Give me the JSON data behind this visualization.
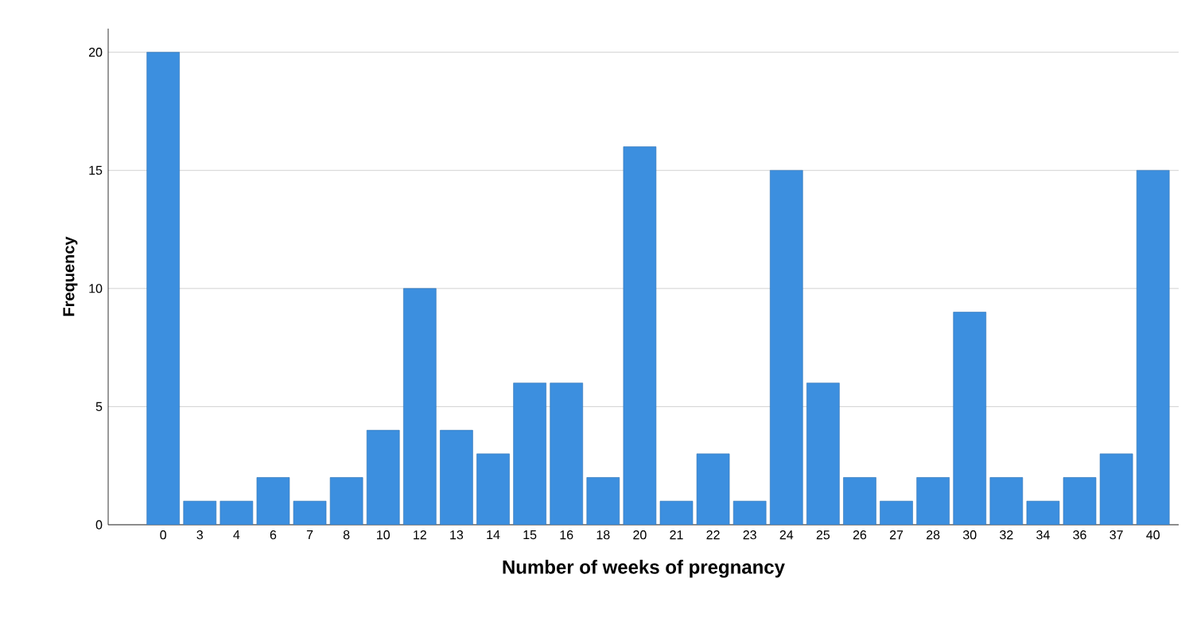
{
  "chart_data": {
    "type": "bar",
    "xlabel": "Number of weeks of pregnancy",
    "ylabel": "Frequency",
    "categories": [
      "0",
      "3",
      "4",
      "6",
      "7",
      "8",
      "10",
      "12",
      "13",
      "14",
      "15",
      "16",
      "18",
      "20",
      "21",
      "22",
      "23",
      "24",
      "25",
      "26",
      "27",
      "28",
      "30",
      "32",
      "34",
      "36",
      "37",
      "40"
    ],
    "values": [
      20,
      1,
      1,
      2,
      1,
      2,
      4,
      10,
      4,
      3,
      6,
      6,
      2,
      16,
      1,
      3,
      1,
      15,
      6,
      2,
      1,
      2,
      9,
      2,
      1,
      2,
      3,
      15
    ],
    "color": "#3c8fdf",
    "ylim": [
      0,
      21
    ],
    "yticks": [
      0,
      5,
      10,
      15,
      20
    ],
    "grid": "y"
  }
}
